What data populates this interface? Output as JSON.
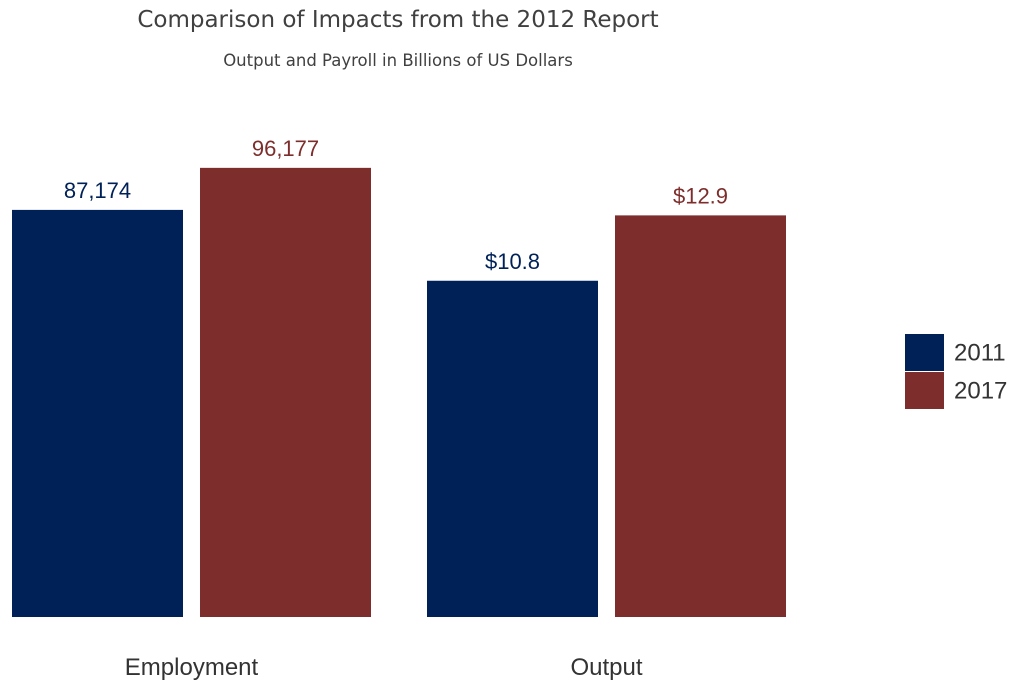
{
  "chart_data": {
    "type": "bar",
    "title": "Comparison of Impacts from the 2012 Report",
    "subtitle": "Output and Payroll in Billions of US Dollars",
    "xlabel": "",
    "ylabel": "",
    "categories": [
      "Employment",
      "Output"
    ],
    "series": [
      {
        "name": "2011",
        "color": "#002157",
        "values": [
          87174,
          10.8
        ],
        "labels": [
          "87,174",
          "$10.8"
        ]
      },
      {
        "name": "2017",
        "color": "#7d2e2c",
        "values": [
          96177,
          12.9
        ],
        "labels": [
          "96,177",
          "$12.9"
        ]
      }
    ],
    "facet_ylim": [
      [
        0,
        100000
      ],
      [
        0,
        15000
      ]
    ],
    "grid": false,
    "legend": {
      "position": "right",
      "items": [
        {
          "label": "2011",
          "color": "#002157"
        },
        {
          "label": "2017",
          "color": "#7d2e2c"
        }
      ]
    }
  }
}
